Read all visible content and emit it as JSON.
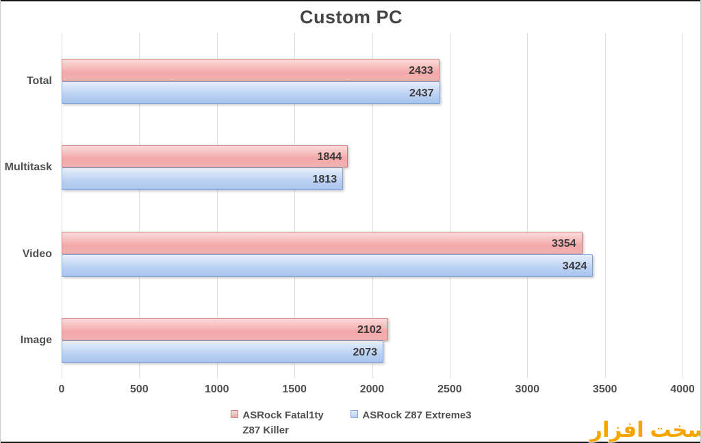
{
  "frame": {
    "top_bottom_bar_color": "#151515",
    "side_border_color": "#cccccc"
  },
  "chart_data": {
    "type": "bar",
    "orientation": "horizontal",
    "title": "Custom PC",
    "title_color": "#454545",
    "categories": [
      "Total",
      "Multitask",
      "Video",
      "Image"
    ],
    "series": [
      {
        "name": "ASRock Fatal1ty Z87 Killer",
        "values": [
          2433,
          1844,
          3354,
          2102
        ],
        "fill_top": "#fcdcdc",
        "fill_mid": "#f3a8a8",
        "fill_bottom": "#f1b2b2",
        "border": "#cd7c7c"
      },
      {
        "name": "ASRock Z87 Extreme3",
        "values": [
          2437,
          1813,
          3424,
          2073
        ],
        "fill_top": "#e6eefb",
        "fill_mid": "#b9d0f2",
        "fill_bottom": "#a8c5ee",
        "border": "#80a5d8"
      }
    ],
    "xlabel": "",
    "ylabel": "",
    "xlim": [
      0,
      4000
    ],
    "xticks": [
      0,
      500,
      1000,
      1500,
      2000,
      2500,
      3000,
      3500,
      4000
    ],
    "grid": true,
    "gridline_color": "#dcdcdc",
    "legend_position": "bottom",
    "value_label_position": "inside-end",
    "value_label_color": "#3a3a3a",
    "axis_text_color": "#4f4f4f"
  },
  "watermark": {
    "text": "سخت افزار",
    "color": "#f6a500"
  }
}
